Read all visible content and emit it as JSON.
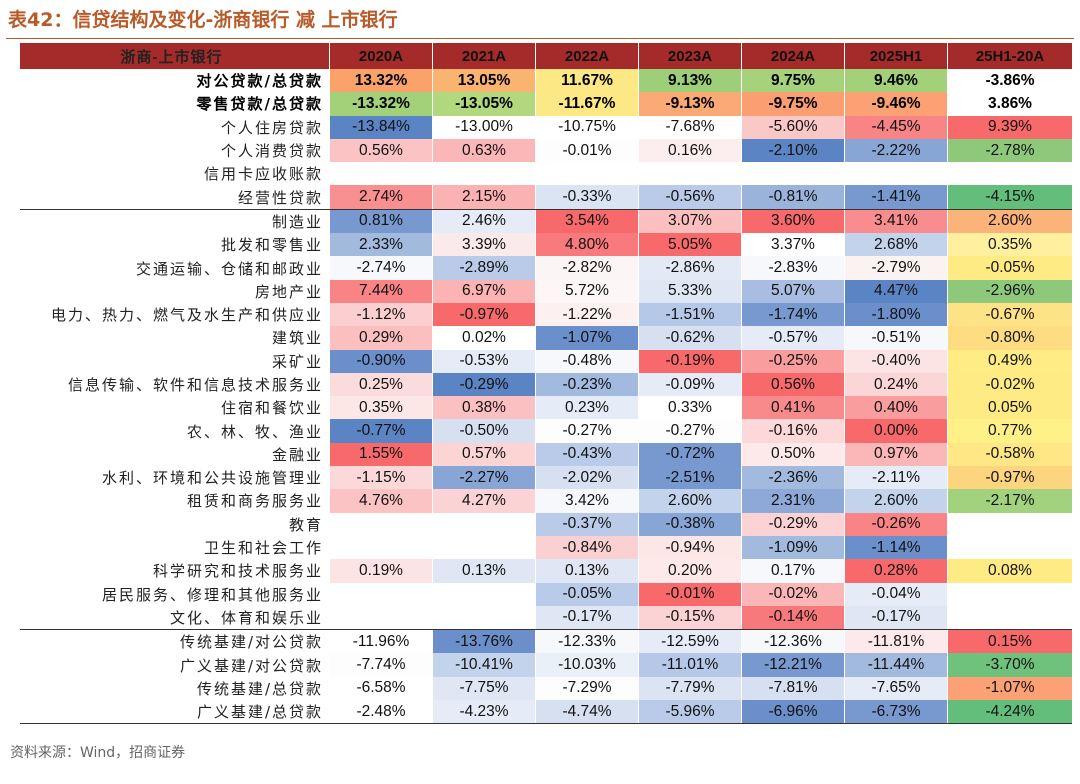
{
  "title": "表42：信贷结构及变化-浙商银行 减 上市银行",
  "source": "资料来源：Wind，招商证券",
  "chart_data": {
    "type": "table",
    "header": [
      "浙商-上市银行",
      "2020A",
      "2021A",
      "2022A",
      "2023A",
      "2024A",
      "2025H1",
      "25H1-20A"
    ],
    "rows": [
      {
        "label": "对公贷款/总贷款",
        "bold": true,
        "values": [
          "13.32%",
          "13.05%",
          "11.67%",
          "9.13%",
          "9.75%",
          "9.46%",
          "-3.86%"
        ],
        "colors": [
          "#f9a36b",
          "#f9b472",
          "#fce884",
          "#9dcf79",
          "#a5d27a",
          "#a2d179",
          "#ffffff"
        ]
      },
      {
        "label": "零售贷款/总贷款",
        "bold": true,
        "values": [
          "-13.32%",
          "-13.05%",
          "-11.67%",
          "-9.13%",
          "-9.75%",
          "-9.46%",
          "3.86%"
        ],
        "colors": [
          "#a2d179",
          "#b2d87d",
          "#fce884",
          "#fbaa76",
          "#fb9e71",
          "#fba174",
          "#ffffff"
        ]
      },
      {
        "label": "个人住房贷款",
        "values": [
          "-13.84%",
          "-13.00%",
          "-10.75%",
          "-7.68%",
          "-5.60%",
          "-4.45%",
          "9.39%"
        ],
        "colors": [
          "#5b84c4",
          "#ffffff",
          "#ffffff",
          "#ffffff",
          "#fbc8c8",
          "#f88486",
          "#f8696b"
        ]
      },
      {
        "label": "个人消费贷款",
        "values": [
          "0.56%",
          "0.63%",
          "-0.01%",
          "0.16%",
          "-2.10%",
          "-2.22%",
          "-2.78%"
        ],
        "colors": [
          "#fbc3c4",
          "#fbb6b7",
          "#fdfdfe",
          "#fcedee",
          "#5b84c4",
          "#87a6d5",
          "#8ec97b"
        ]
      },
      {
        "label": "信用卡应收账款",
        "values": [
          "",
          "",
          "",
          "",
          "",
          "",
          ""
        ],
        "colors": [
          "#ffffff",
          "#ffffff",
          "#ffffff",
          "#ffffff",
          "#ffffff",
          "#ffffff",
          "#ffffff"
        ]
      },
      {
        "label": "经营性贷款",
        "values": [
          "2.74%",
          "2.15%",
          "-0.33%",
          "-0.56%",
          "-0.81%",
          "-1.41%",
          "-4.15%"
        ],
        "colors": [
          "#f88f91",
          "#fbb2b3",
          "#dae4f3",
          "#b9cbe8",
          "#99b3db",
          "#7899cf",
          "#63be7b"
        ]
      },
      {
        "label": "制造业",
        "sepTop": true,
        "values": [
          "0.81%",
          "2.46%",
          "3.54%",
          "3.07%",
          "3.60%",
          "3.41%",
          "2.60%"
        ],
        "colors": [
          "#7899cf",
          "#e6ecf7",
          "#f8696b",
          "#fbbfc0",
          "#f8696b",
          "#f98c8e",
          "#fcb37a"
        ]
      },
      {
        "label": "批发和零售业",
        "values": [
          "2.33%",
          "3.39%",
          "4.80%",
          "5.05%",
          "3.37%",
          "2.68%",
          "0.35%"
        ],
        "colors": [
          "#a3badf",
          "#fbeaea",
          "#f87a7c",
          "#f8696b",
          "#ffffff",
          "#c4d3ec",
          "#fff0a0"
        ]
      },
      {
        "label": "交通运输、仓储和邮政业",
        "values": [
          "-2.74%",
          "-2.89%",
          "-2.82%",
          "-2.86%",
          "-2.83%",
          "-2.79%",
          "-0.05%"
        ],
        "colors": [
          "#f6f8fc",
          "#b9cbe8",
          "#fcf5f5",
          "#e3e9f5",
          "#f6f8fc",
          "#fcf2f2",
          "#ffeb84"
        ]
      },
      {
        "label": "房地产业",
        "values": [
          "7.44%",
          "6.97%",
          "5.72%",
          "5.33%",
          "5.07%",
          "4.47%",
          "-2.96%"
        ],
        "colors": [
          "#f88486",
          "#fbb3b4",
          "#fcf6f6",
          "#dfe7f4",
          "#a8bde1",
          "#5b84c4",
          "#8ec97b"
        ]
      },
      {
        "label": "电力、热力、燃气及水生产和供应业",
        "values": [
          "-1.12%",
          "-0.97%",
          "-1.22%",
          "-1.51%",
          "-1.74%",
          "-1.80%",
          "-0.67%"
        ],
        "colors": [
          "#fbcfd0",
          "#f8696b",
          "#fdf0f0",
          "#b6c8e7",
          "#7899cf",
          "#6a8fca",
          "#fde385"
        ]
      },
      {
        "label": "建筑业",
        "values": [
          "0.29%",
          "0.02%",
          "-1.07%",
          "-0.62%",
          "-0.57%",
          "-0.51%",
          "-0.80%"
        ],
        "colors": [
          "#fbbfc0",
          "#ffffff",
          "#6a8fca",
          "#d6e0f1",
          "#e6ecf7",
          "#f6f8fc",
          "#fedd82"
        ]
      },
      {
        "label": "采矿业",
        "values": [
          "-0.90%",
          "-0.53%",
          "-0.48%",
          "-0.19%",
          "-0.25%",
          "-0.40%",
          "0.49%"
        ],
        "colors": [
          "#6a8fca",
          "#e6ecf7",
          "#f6f8fc",
          "#f8696b",
          "#fa9d9f",
          "#fce4e4",
          "#ffec84"
        ]
      },
      {
        "label": "信息传输、软件和信息技术服务业",
        "values": [
          "0.25%",
          "-0.29%",
          "-0.23%",
          "-0.09%",
          "0.56%",
          "0.24%",
          "-0.02%"
        ],
        "colors": [
          "#fbdbdb",
          "#5b84c4",
          "#a3badf",
          "#e6ecf7",
          "#f8696b",
          "#fbd6d6",
          "#ffeb84"
        ]
      },
      {
        "label": "住宿和餐饮业",
        "values": [
          "0.35%",
          "0.38%",
          "0.23%",
          "0.33%",
          "0.41%",
          "0.40%",
          "0.05%"
        ],
        "colors": [
          "#fce6e6",
          "#fbc1c2",
          "#e6ecf7",
          "#ffffff",
          "#f88a8c",
          "#fa9d9f",
          "#ffeb84"
        ]
      },
      {
        "label": "农、林、牧、渔业",
        "values": [
          "-0.77%",
          "-0.50%",
          "-0.27%",
          "-0.27%",
          "-0.16%",
          "0.00%",
          "0.77%"
        ],
        "colors": [
          "#5b84c4",
          "#d6e0f1",
          "#fdfdfe",
          "#fdfdfe",
          "#fcd8d8",
          "#f8696b",
          "#fff087"
        ]
      },
      {
        "label": "金融业",
        "values": [
          "1.55%",
          "0.57%",
          "-0.43%",
          "-0.72%",
          "0.50%",
          "0.97%",
          "-0.58%"
        ],
        "colors": [
          "#f8696b",
          "#fcd4d4",
          "#b9cbe8",
          "#7899cf",
          "#fde9e9",
          "#fbb6b7",
          "#fee784"
        ]
      },
      {
        "label": "水利、环境和公共设施管理业",
        "values": [
          "-1.15%",
          "-2.27%",
          "-2.02%",
          "-2.51%",
          "-2.36%",
          "-2.11%",
          "-0.97%"
        ],
        "colors": [
          "#fcd9d9",
          "#87a6d5",
          "#d6e0f1",
          "#7899cf",
          "#a3badf",
          "#e6ecf7",
          "#fed57f"
        ]
      },
      {
        "label": "租赁和商务服务业",
        "values": [
          "4.76%",
          "4.27%",
          "3.42%",
          "2.60%",
          "2.31%",
          "2.60%",
          "-2.17%"
        ],
        "colors": [
          "#fbc3c4",
          "#fbd3d4",
          "#f6f8fc",
          "#c4d3ec",
          "#8ea9d8",
          "#c4d3ec",
          "#a3d27e"
        ]
      },
      {
        "label": "教育",
        "values": [
          "",
          "",
          "-0.37%",
          "-0.38%",
          "-0.29%",
          "-0.26%",
          ""
        ],
        "colors": [
          "#ffffff",
          "#ffffff",
          "#b9cbe8",
          "#87a6d5",
          "#fbd3d4",
          "#f88486",
          "#ffffff"
        ]
      },
      {
        "label": "卫生和社会工作",
        "values": [
          "",
          "",
          "-0.84%",
          "-0.94%",
          "-1.09%",
          "-1.14%",
          ""
        ],
        "colors": [
          "#ffffff",
          "#ffffff",
          "#fbd0d1",
          "#fde6e6",
          "#a3badf",
          "#6a8fca",
          "#ffffff"
        ]
      },
      {
        "label": "科学研究和技术服务业",
        "values": [
          "0.19%",
          "0.13%",
          "0.13%",
          "0.20%",
          "0.17%",
          "0.28%",
          "0.08%"
        ],
        "colors": [
          "#fde4e4",
          "#dfe7f4",
          "#dfe7f4",
          "#fde9e9",
          "#f6f8fc",
          "#f8696b",
          "#ffeb84"
        ]
      },
      {
        "label": "居民服务、修理和其他服务业",
        "values": [
          "",
          "",
          "-0.05%",
          "-0.01%",
          "-0.02%",
          "-0.04%",
          ""
        ],
        "colors": [
          "#ffffff",
          "#ffffff",
          "#b9cbe8",
          "#f8696b",
          "#fbb6b7",
          "#e6ecf7",
          "#ffffff"
        ]
      },
      {
        "label": "文化、体育和娱乐业",
        "values": [
          "",
          "",
          "-0.17%",
          "-0.15%",
          "-0.14%",
          "-0.17%",
          ""
        ],
        "colors": [
          "#ffffff",
          "#ffffff",
          "#dfe7f4",
          "#fbd3d4",
          "#f8797b",
          "#dfe7f4",
          "#ffffff"
        ]
      },
      {
        "label": "传统基建/对公贷款",
        "sepTop": true,
        "values": [
          "-11.96%",
          "-13.76%",
          "-12.33%",
          "-12.59%",
          "-12.36%",
          "-11.81%",
          "0.15%"
        ],
        "colors": [
          "#ffffff",
          "#6a8fca",
          "#f6f8fc",
          "#e6ecf7",
          "#f6f8fc",
          "#fde9e9",
          "#f8696b"
        ]
      },
      {
        "label": "广义基建/对公贷款",
        "values": [
          "-7.74%",
          "-10.41%",
          "-10.03%",
          "-11.01%",
          "-12.21%",
          "-11.44%",
          "-3.70%"
        ],
        "colors": [
          "#fdfdfe",
          "#c4d3ec",
          "#eaf0f8",
          "#b6c8e7",
          "#7899cf",
          "#a3badf",
          "#6fc27c"
        ]
      },
      {
        "label": "传统基建/总贷款",
        "values": [
          "-6.58%",
          "-7.75%",
          "-7.29%",
          "-7.79%",
          "-7.81%",
          "-7.65%",
          "-1.07%"
        ],
        "colors": [
          "#ffffff",
          "#dfe7f4",
          "#fdfdfe",
          "#dae4f3",
          "#d6e0f1",
          "#e6ecf7",
          "#fba175"
        ]
      },
      {
        "label": "广义基建/总贷款",
        "sepBot": true,
        "values": [
          "-2.48%",
          "-4.23%",
          "-4.74%",
          "-5.96%",
          "-6.96%",
          "-6.73%",
          "-4.24%"
        ],
        "colors": [
          "#ffffff",
          "#e6ecf7",
          "#d6e0f1",
          "#b9cbe8",
          "#6a8fca",
          "#7899cf",
          "#63be7b"
        ]
      }
    ]
  }
}
